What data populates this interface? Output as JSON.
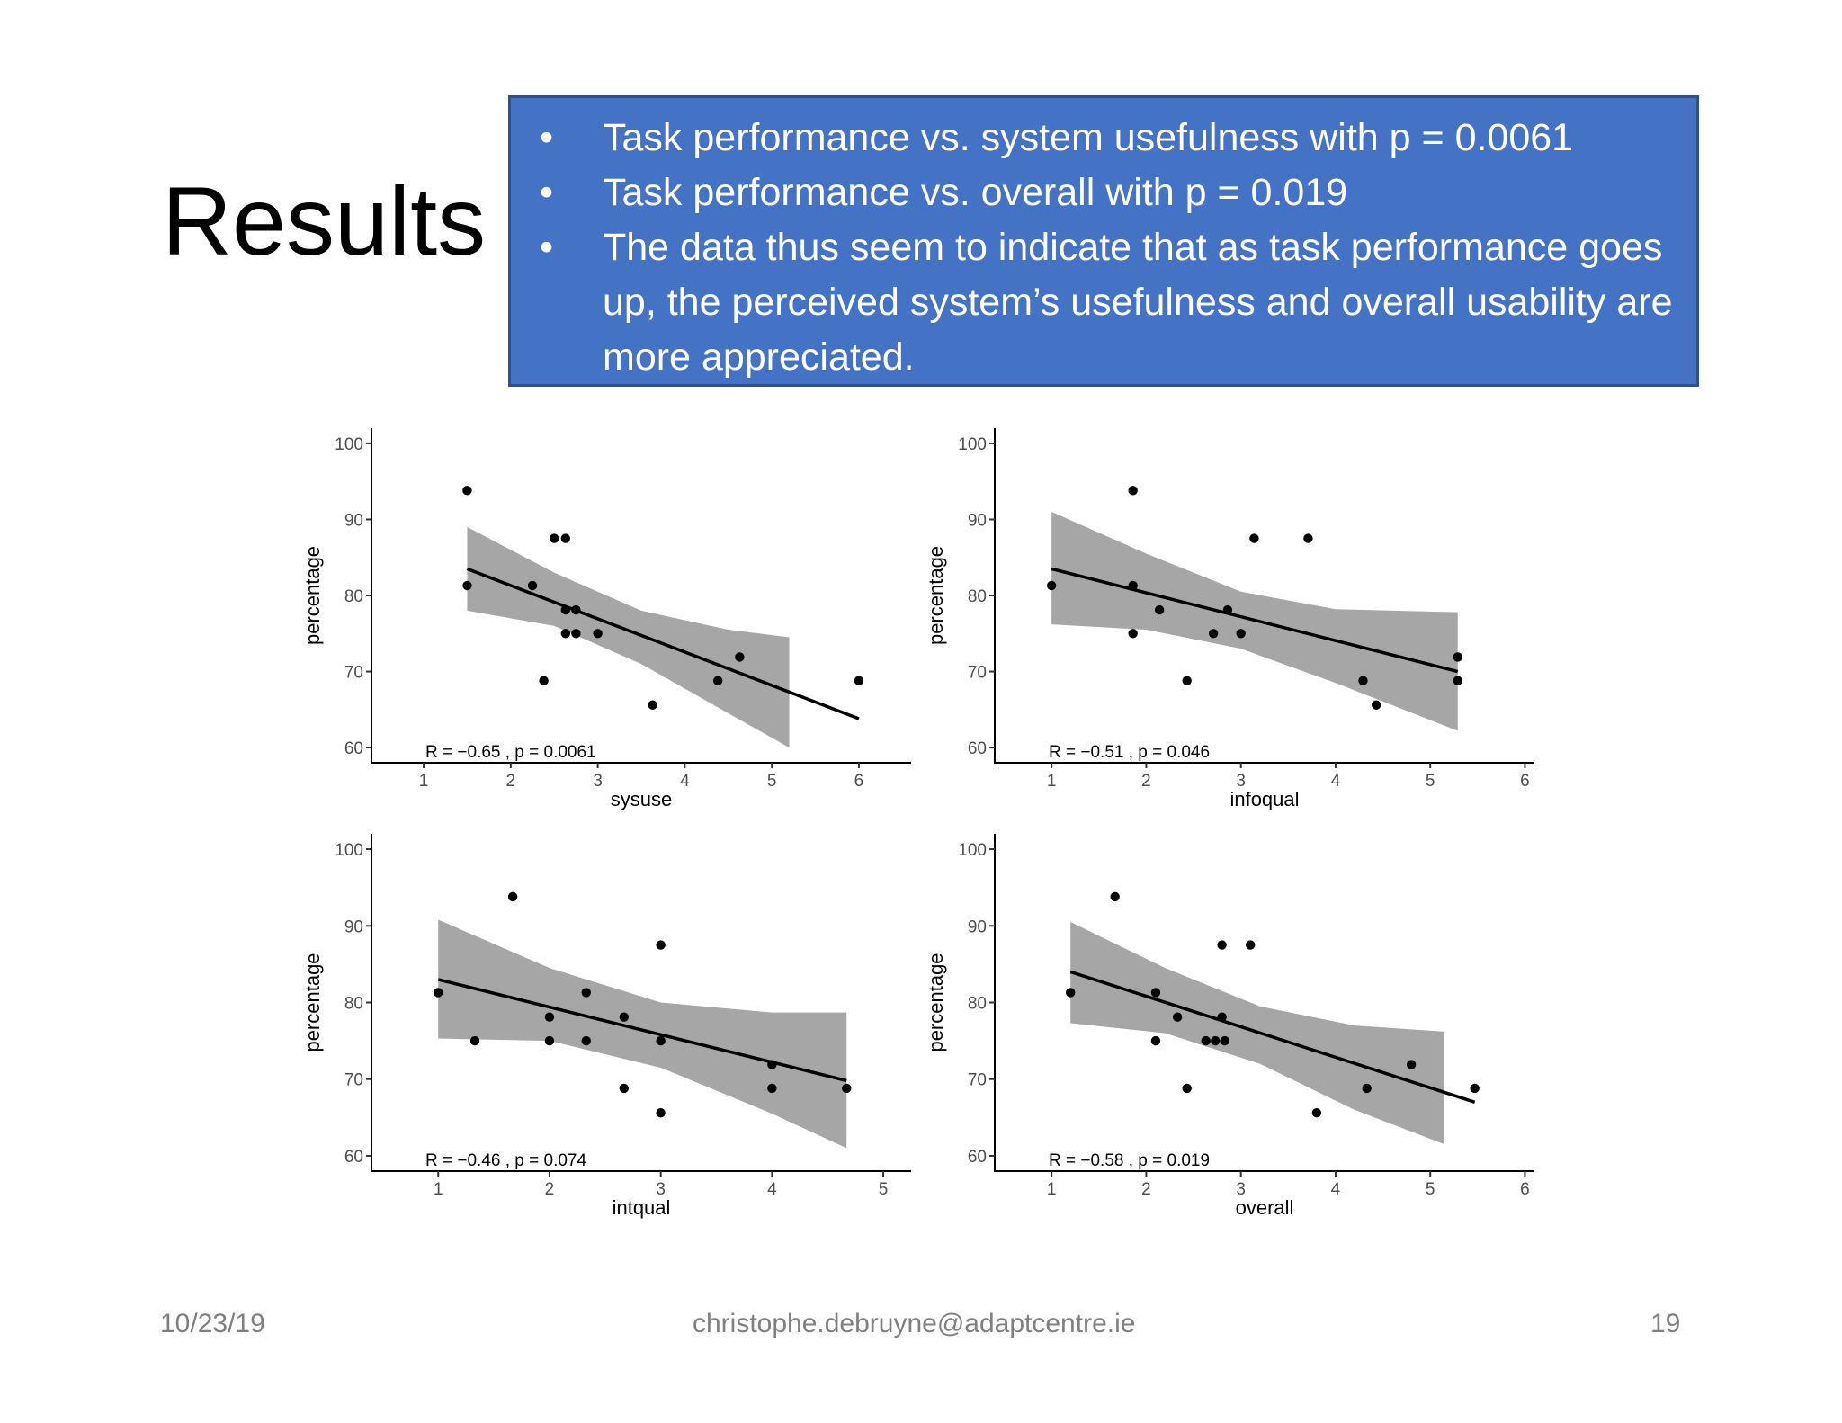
{
  "slide": {
    "title": "Results",
    "bullets": [
      "Task performance vs. system usefulness with p = 0.0061",
      "Task performance vs. overall with p = 0.019",
      "The data thus seem to indicate that as task performance goes up, the perceived system’s usefulness and overall usability are more appreciated."
    ],
    "bullet_symbol": "•",
    "box_color": "#4472c4"
  },
  "footer": {
    "date": "10/23/19",
    "email": "christophe.debruyne@adaptcentre.ie",
    "page": "19"
  },
  "chart_data": [
    {
      "type": "scatter",
      "xlabel": "sysuse",
      "ylabel": "percentage",
      "xlim": [
        0.4,
        6.6
      ],
      "ylim": [
        58,
        102
      ],
      "xticks": [
        1,
        2,
        3,
        4,
        5,
        6
      ],
      "yticks": [
        60,
        70,
        80,
        90,
        100
      ],
      "stat_label": "R = −0.65 , p = 0.0061",
      "points": [
        {
          "x": 1.5,
          "y": 93.8
        },
        {
          "x": 1.5,
          "y": 81.3
        },
        {
          "x": 2.25,
          "y": 81.3
        },
        {
          "x": 2.38,
          "y": 68.8
        },
        {
          "x": 2.5,
          "y": 87.5
        },
        {
          "x": 2.63,
          "y": 87.5
        },
        {
          "x": 2.63,
          "y": 78.1
        },
        {
          "x": 2.63,
          "y": 75
        },
        {
          "x": 2.75,
          "y": 78.1
        },
        {
          "x": 2.75,
          "y": 75
        },
        {
          "x": 3,
          "y": 75
        },
        {
          "x": 3.63,
          "y": 65.6
        },
        {
          "x": 4.38,
          "y": 68.8
        },
        {
          "x": 4.63,
          "y": 71.9
        },
        {
          "x": 6,
          "y": 68.8
        }
      ],
      "fit": {
        "x1": 1.5,
        "y1": 83.5,
        "x2": 6,
        "y2": 63.8
      },
      "band": {
        "upper": [
          [
            1.5,
            89
          ],
          [
            2.5,
            83
          ],
          [
            3.5,
            78
          ],
          [
            4.5,
            75.5
          ],
          [
            5.2,
            74.5
          ]
        ],
        "lower": [
          [
            1.5,
            78
          ],
          [
            2.5,
            76
          ],
          [
            3.5,
            71
          ],
          [
            4.5,
            64.5
          ],
          [
            5.2,
            60
          ]
        ]
      }
    },
    {
      "type": "scatter",
      "xlabel": "infoqual",
      "ylabel": "percentage",
      "xlim": [
        0.4,
        6.1
      ],
      "ylim": [
        58,
        102
      ],
      "xticks": [
        1,
        2,
        3,
        4,
        5,
        6
      ],
      "yticks": [
        60,
        70,
        80,
        90,
        100
      ],
      "stat_label": "R = −0.51 , p = 0.046",
      "points": [
        {
          "x": 1,
          "y": 81.3
        },
        {
          "x": 1.86,
          "y": 93.8
        },
        {
          "x": 1.86,
          "y": 81.3
        },
        {
          "x": 1.86,
          "y": 75
        },
        {
          "x": 2.14,
          "y": 78.1
        },
        {
          "x": 2.43,
          "y": 68.8
        },
        {
          "x": 2.71,
          "y": 75
        },
        {
          "x": 2.86,
          "y": 78.1
        },
        {
          "x": 3,
          "y": 75
        },
        {
          "x": 3.14,
          "y": 87.5
        },
        {
          "x": 3.71,
          "y": 87.5
        },
        {
          "x": 4.29,
          "y": 68.8
        },
        {
          "x": 4.43,
          "y": 65.6
        },
        {
          "x": 5.29,
          "y": 71.9
        },
        {
          "x": 5.29,
          "y": 68.8
        }
      ],
      "fit": {
        "x1": 1,
        "y1": 83.5,
        "x2": 5.29,
        "y2": 70
      },
      "band": {
        "upper": [
          [
            1,
            91
          ],
          [
            2,
            85.5
          ],
          [
            3,
            80.5
          ],
          [
            4,
            78.2
          ],
          [
            5.29,
            77.8
          ]
        ],
        "lower": [
          [
            1,
            76.2
          ],
          [
            2,
            75.5
          ],
          [
            3,
            73
          ],
          [
            4,
            68.5
          ],
          [
            5.29,
            62.2
          ]
        ]
      }
    },
    {
      "type": "scatter",
      "xlabel": "intqual",
      "ylabel": "percentage",
      "xlim": [
        0.4,
        5.25
      ],
      "ylim": [
        58,
        102
      ],
      "xticks": [
        1,
        2,
        3,
        4,
        5
      ],
      "yticks": [
        60,
        70,
        80,
        90,
        100
      ],
      "stat_label": "R = −0.46 , p = 0.074",
      "points": [
        {
          "x": 1,
          "y": 81.3
        },
        {
          "x": 1.33,
          "y": 75
        },
        {
          "x": 1.67,
          "y": 93.8
        },
        {
          "x": 2,
          "y": 78.1
        },
        {
          "x": 2,
          "y": 75
        },
        {
          "x": 2.33,
          "y": 81.3
        },
        {
          "x": 2.33,
          "y": 75
        },
        {
          "x": 2.67,
          "y": 78.1
        },
        {
          "x": 2.67,
          "y": 68.8
        },
        {
          "x": 3,
          "y": 87.5
        },
        {
          "x": 3,
          "y": 75
        },
        {
          "x": 3,
          "y": 65.6
        },
        {
          "x": 4,
          "y": 71.9
        },
        {
          "x": 4,
          "y": 68.8
        },
        {
          "x": 4.67,
          "y": 68.8
        }
      ],
      "fit": {
        "x1": 1,
        "y1": 83,
        "x2": 4.67,
        "y2": 69.8
      },
      "band": {
        "upper": [
          [
            1,
            90.8
          ],
          [
            2,
            84.5
          ],
          [
            3,
            80
          ],
          [
            4,
            78.7
          ],
          [
            4.67,
            78.7
          ]
        ],
        "lower": [
          [
            1,
            75.3
          ],
          [
            2,
            75
          ],
          [
            3,
            71.5
          ],
          [
            4,
            65.5
          ],
          [
            4.67,
            61
          ]
        ]
      }
    },
    {
      "type": "scatter",
      "xlabel": "overall",
      "ylabel": "percentage",
      "xlim": [
        0.4,
        6.1
      ],
      "ylim": [
        58,
        102
      ],
      "xticks": [
        1,
        2,
        3,
        4,
        5,
        6
      ],
      "yticks": [
        60,
        70,
        80,
        90,
        100
      ],
      "stat_label": "R = −0.58 , p = 0.019",
      "points": [
        {
          "x": 1.2,
          "y": 81.3
        },
        {
          "x": 1.67,
          "y": 93.8
        },
        {
          "x": 2.1,
          "y": 81.3
        },
        {
          "x": 2.1,
          "y": 75
        },
        {
          "x": 2.33,
          "y": 78.1
        },
        {
          "x": 2.43,
          "y": 68.8
        },
        {
          "x": 2.63,
          "y": 75
        },
        {
          "x": 2.73,
          "y": 75
        },
        {
          "x": 2.8,
          "y": 87.5
        },
        {
          "x": 2.8,
          "y": 78.1
        },
        {
          "x": 2.83,
          "y": 75
        },
        {
          "x": 3.1,
          "y": 87.5
        },
        {
          "x": 3.8,
          "y": 65.6
        },
        {
          "x": 4.33,
          "y": 68.8
        },
        {
          "x": 4.8,
          "y": 71.9
        },
        {
          "x": 5.47,
          "y": 68.8
        }
      ],
      "fit": {
        "x1": 1.2,
        "y1": 84,
        "x2": 5.47,
        "y2": 67
      },
      "band": {
        "upper": [
          [
            1.2,
            90.5
          ],
          [
            2.2,
            84.5
          ],
          [
            3.2,
            79.5
          ],
          [
            4.2,
            77
          ],
          [
            5.15,
            76.2
          ]
        ],
        "lower": [
          [
            1.2,
            77.3
          ],
          [
            2.2,
            76
          ],
          [
            3.2,
            72
          ],
          [
            4.2,
            66
          ],
          [
            5.15,
            61.5
          ]
        ]
      }
    }
  ]
}
